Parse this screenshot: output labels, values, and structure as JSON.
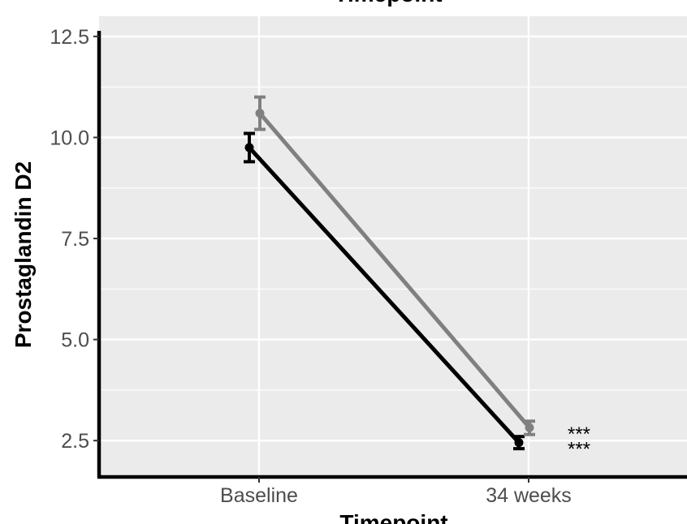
{
  "chart_data": {
    "type": "line",
    "title": "Timepoint",
    "xlabel": "Timepoint",
    "ylabel": "Prostaglandin D2",
    "categories": [
      "Baseline",
      "34 weeks"
    ],
    "ylim": [
      1.6,
      13.0
    ],
    "yticks": [
      2.5,
      5.0,
      7.5,
      10.0,
      12.5
    ],
    "ytick_labels": [
      "2.5",
      "5.0",
      "7.5",
      "10.0",
      "12.5"
    ],
    "grid": true,
    "legend": "none",
    "series": [
      {
        "color": "#000000",
        "values": [
          9.75,
          2.45
        ],
        "error_low": [
          9.4,
          2.3
        ],
        "error_high": [
          10.1,
          2.6
        ]
      },
      {
        "color": "#808080",
        "values": [
          10.6,
          2.82
        ],
        "error_low": [
          10.2,
          2.65
        ],
        "error_high": [
          11.0,
          2.98
        ]
      }
    ],
    "annotations": [
      {
        "text": "***",
        "category": "34 weeks",
        "y": 2.82
      },
      {
        "text": "***",
        "category": "34 weeks",
        "y": 2.45
      }
    ],
    "panel_background": "#ebebeb",
    "grid_color": "#ffffff"
  }
}
